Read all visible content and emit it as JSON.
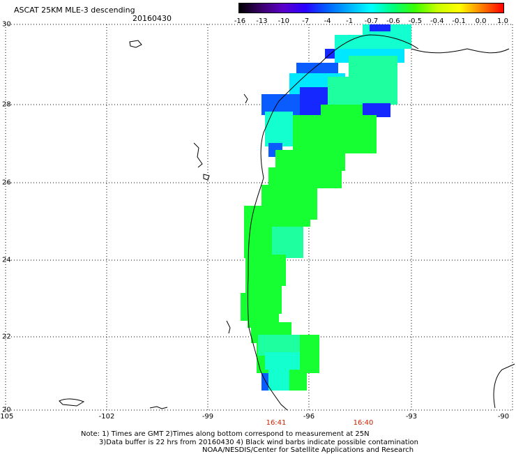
{
  "header": {
    "title": "ASCAT 25KM MLE-3 descending",
    "date": "20160430"
  },
  "colorbar": {
    "labels": [
      "-16",
      "-13",
      "-10",
      "-7",
      "-4",
      "-1",
      "-0.7",
      "-0.6",
      "-0.5",
      "-0.4",
      "-0.1",
      "0.0",
      "1.0"
    ],
    "colors": [
      "#000000",
      "#3a006a",
      "#5a00c8",
      "#2a00ff",
      "#0060ff",
      "#00b0ff",
      "#00ffff",
      "#00ff7a",
      "#3cff00",
      "#c8ff00",
      "#ffff00",
      "#ff8000",
      "#ff0000"
    ]
  },
  "axes": {
    "lat_labels": [
      "30",
      "28",
      "26",
      "24",
      "22",
      "20"
    ],
    "lon_labels": [
      "-105",
      "-102",
      "-99",
      "-96",
      "-93",
      "-90"
    ]
  },
  "times": [
    "16:41",
    "16:40"
  ],
  "notes": [
    "Note: 1) Times are GMT 2)Times along bottom correspond to measurement at 25N",
    "3)Data buffer is 22 hrs from 20160430 4) Black wind barbs indicate possible contamination",
    "NOAA/NESDIS/Center for Satellite Applications and Research"
  ],
  "map_colors": {
    "green": "#16ff32",
    "cyan": "#14ffd0",
    "teal": "#1effa0",
    "aqua": "#00e8ff",
    "blue": "#0a5cff",
    "darkblue": "#1428ff"
  }
}
